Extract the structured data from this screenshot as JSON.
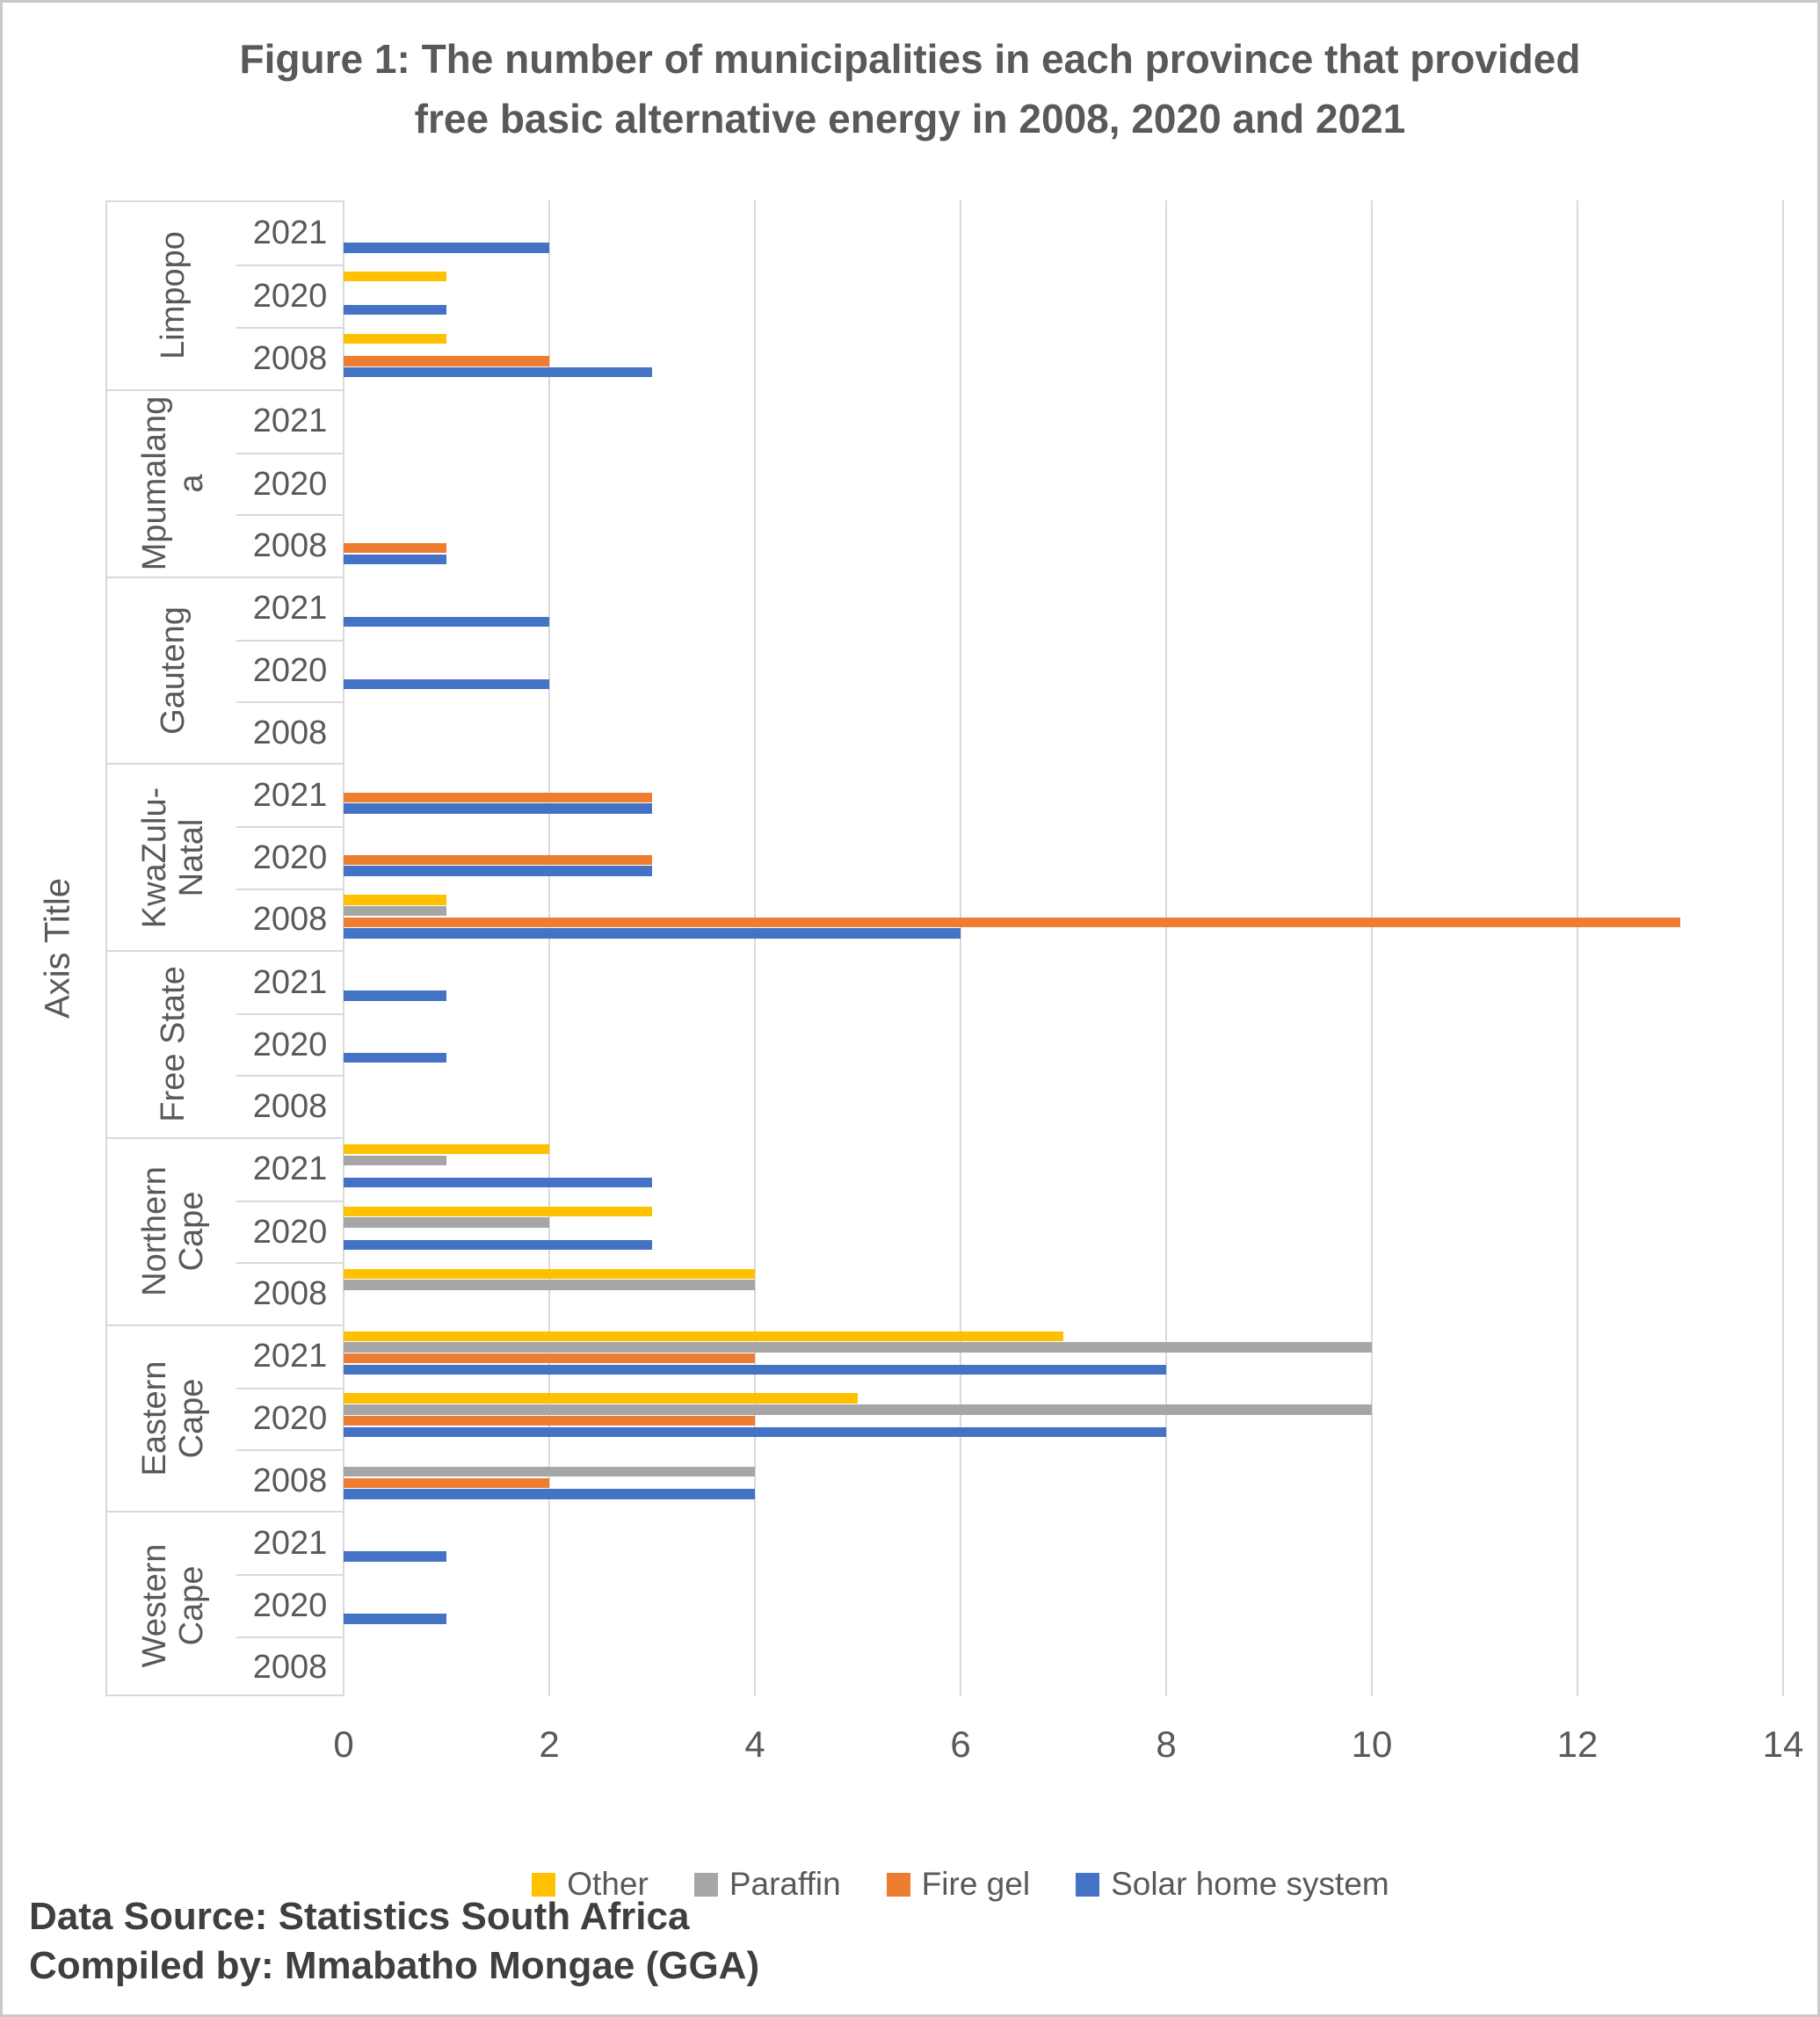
{
  "title": {
    "line1": "Figure 1: The number of municipalities in each province that provided",
    "line2": "free basic alternative energy in 2008, 2020 and 2021"
  },
  "axis_title": "Axis Title",
  "footer": {
    "source": "Data Source: Statistics South Africa",
    "compiled": "Compiled by: Mmabatho Mongae (GGA)"
  },
  "legend": [
    {
      "label": "Other",
      "color": "#FFC000"
    },
    {
      "label": "Paraffin",
      "color": "#A6A6A6"
    },
    {
      "label": "Fire gel",
      "color": "#ED7D31"
    },
    {
      "label": "Solar home system",
      "color": "#4472C4"
    }
  ],
  "colors": {
    "other": "#FFC000",
    "paraffin": "#A6A6A6",
    "fire_gel": "#ED7D31",
    "solar_home_system": "#4472C4",
    "gridline": "#D9D9D9",
    "axis_text": "#595959",
    "footer_text": "#3F3F3F"
  },
  "chart_data": {
    "type": "bar",
    "orientation": "horizontal",
    "title": "Figure 1: The number of municipalities in each province that provided free basic alternative energy in 2008, 2020 and 2021",
    "y_axis_title": "Axis Title",
    "legend_position": "bottom",
    "grid": true,
    "x_axis": {
      "min": 0,
      "max": 14,
      "ticks": [
        0,
        2,
        4,
        6,
        8,
        10,
        12,
        14
      ]
    },
    "series_names": [
      "Other",
      "Paraffin",
      "Fire gel",
      "Solar home system"
    ],
    "series_colors": [
      "#FFC000",
      "#A6A6A6",
      "#ED7D31",
      "#4472C4"
    ],
    "groups": [
      {
        "province": "Limpopo",
        "label_lines": [
          "Limpopo"
        ],
        "rows": [
          {
            "year": "2021",
            "values": [
              0,
              0,
              0,
              2
            ]
          },
          {
            "year": "2020",
            "values": [
              1,
              0,
              0,
              1
            ]
          },
          {
            "year": "2008",
            "values": [
              1,
              0,
              2,
              3
            ]
          }
        ]
      },
      {
        "province": "Mpumalanga",
        "label_lines": [
          "Mpumalang",
          "a"
        ],
        "rows": [
          {
            "year": "2021",
            "values": [
              0,
              0,
              0,
              0
            ]
          },
          {
            "year": "2020",
            "values": [
              0,
              0,
              0,
              0
            ]
          },
          {
            "year": "2008",
            "values": [
              0,
              0,
              1,
              1
            ]
          }
        ]
      },
      {
        "province": "Gauteng",
        "label_lines": [
          "Gauteng"
        ],
        "rows": [
          {
            "year": "2021",
            "values": [
              0,
              0,
              0,
              2
            ]
          },
          {
            "year": "2020",
            "values": [
              0,
              0,
              0,
              2
            ]
          },
          {
            "year": "2008",
            "values": [
              0,
              0,
              0,
              0
            ]
          }
        ]
      },
      {
        "province": "KwaZulu-Natal",
        "label_lines": [
          "KwaZulu-",
          "Natal"
        ],
        "rows": [
          {
            "year": "2021",
            "values": [
              0,
              0,
              3,
              3
            ]
          },
          {
            "year": "2020",
            "values": [
              0,
              0,
              3,
              3
            ]
          },
          {
            "year": "2008",
            "values": [
              1,
              1,
              13,
              6
            ]
          }
        ]
      },
      {
        "province": "Free State",
        "label_lines": [
          "Free State"
        ],
        "rows": [
          {
            "year": "2021",
            "values": [
              0,
              0,
              0,
              1
            ]
          },
          {
            "year": "2020",
            "values": [
              0,
              0,
              0,
              1
            ]
          },
          {
            "year": "2008",
            "values": [
              0,
              0,
              0,
              0
            ]
          }
        ]
      },
      {
        "province": "Northern Cape",
        "label_lines": [
          "Northern",
          "Cape"
        ],
        "rows": [
          {
            "year": "2021",
            "values": [
              2,
              1,
              0,
              3
            ]
          },
          {
            "year": "2020",
            "values": [
              3,
              2,
              0,
              3
            ]
          },
          {
            "year": "2008",
            "values": [
              4,
              4,
              0,
              0
            ]
          }
        ]
      },
      {
        "province": "Eastern Cape",
        "label_lines": [
          "Eastern",
          "Cape"
        ],
        "rows": [
          {
            "year": "2021",
            "values": [
              7,
              10,
              4,
              8
            ]
          },
          {
            "year": "2020",
            "values": [
              5,
              10,
              4,
              8
            ]
          },
          {
            "year": "2008",
            "values": [
              0,
              4,
              2,
              4
            ]
          }
        ]
      },
      {
        "province": "Western Cape",
        "label_lines": [
          "Western",
          "Cape"
        ],
        "rows": [
          {
            "year": "2021",
            "values": [
              0,
              0,
              0,
              1
            ]
          },
          {
            "year": "2020",
            "values": [
              0,
              0,
              0,
              1
            ]
          },
          {
            "year": "2008",
            "values": [
              0,
              0,
              0,
              0
            ]
          }
        ]
      }
    ]
  }
}
